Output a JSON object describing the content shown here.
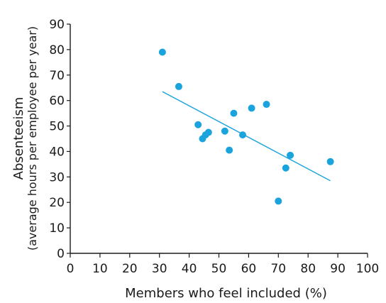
{
  "chart_data": {
    "type": "scatter",
    "title": "",
    "xlabel": "Members who feel included (%)",
    "ylabel": "Absenteeism",
    "ylabel_sub": "(average hours per employee per year)",
    "xlim": [
      0,
      100
    ],
    "ylim": [
      0,
      90
    ],
    "x_ticks": [
      0,
      10,
      20,
      30,
      40,
      50,
      60,
      70,
      80,
      90,
      100
    ],
    "y_ticks": [
      0,
      10,
      20,
      30,
      40,
      50,
      60,
      70,
      80,
      90
    ],
    "grid": false,
    "points": [
      {
        "x": 31,
        "y": 79
      },
      {
        "x": 36.5,
        "y": 65.5
      },
      {
        "x": 43,
        "y": 50.5
      },
      {
        "x": 44.5,
        "y": 45
      },
      {
        "x": 45.5,
        "y": 46.5
      },
      {
        "x": 46.5,
        "y": 47.5
      },
      {
        "x": 52,
        "y": 48
      },
      {
        "x": 53.5,
        "y": 40.5
      },
      {
        "x": 55,
        "y": 55
      },
      {
        "x": 58,
        "y": 46.5
      },
      {
        "x": 61,
        "y": 57
      },
      {
        "x": 66,
        "y": 58.5
      },
      {
        "x": 70,
        "y": 20.5
      },
      {
        "x": 72.5,
        "y": 33.5
      },
      {
        "x": 74,
        "y": 38.5
      },
      {
        "x": 87.5,
        "y": 36
      }
    ],
    "trendline": {
      "x1": 31,
      "y1": 63.5,
      "x2": 87.5,
      "y2": 28.5
    },
    "colors": {
      "marker": "#1aa3dd",
      "trendline": "#1aa3dd",
      "axis": "#1a1a1a"
    }
  }
}
